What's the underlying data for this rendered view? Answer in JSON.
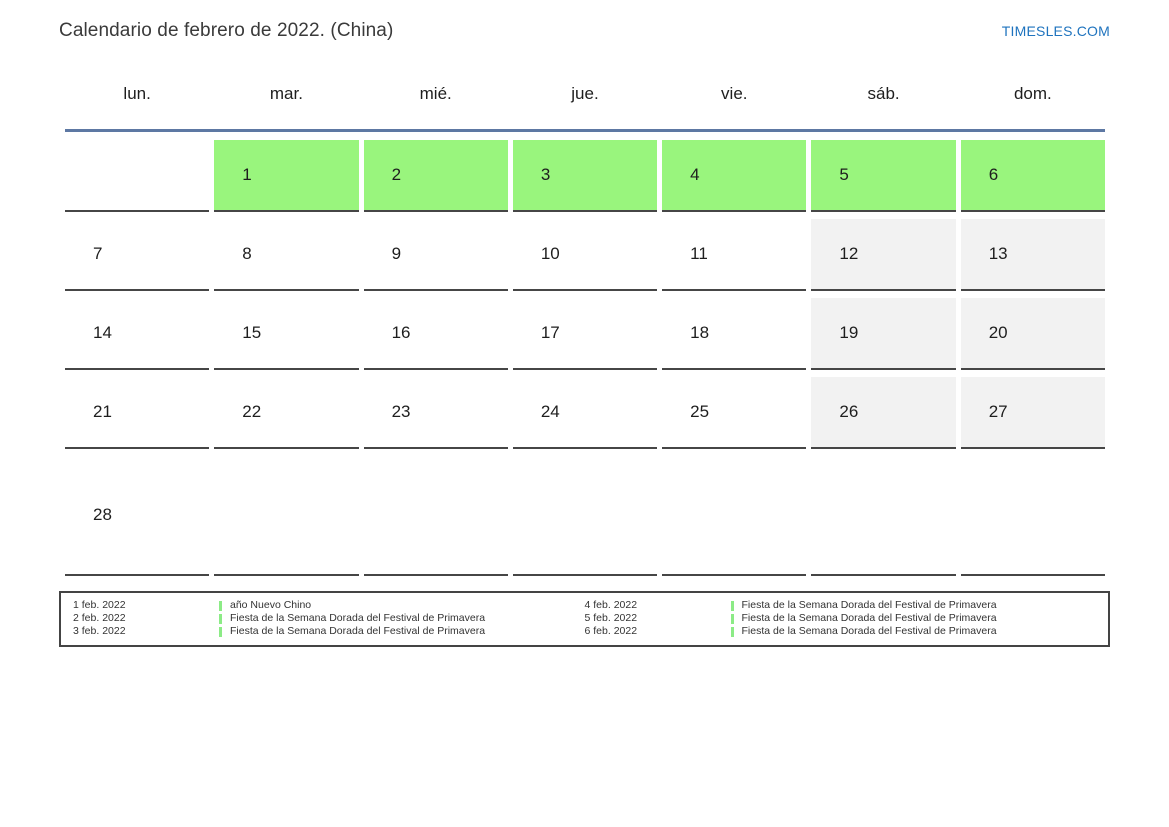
{
  "page": {
    "title": "Calendario de febrero de 2022. (China)",
    "brand": "TIMESLES.COM"
  },
  "calendar": {
    "weekdays": [
      "lun.",
      "mar.",
      "mié.",
      "jue.",
      "vie.",
      "sáb.",
      "dom."
    ],
    "weeks": [
      [
        {
          "day": "",
          "type": "empty"
        },
        {
          "day": "1",
          "type": "holiday"
        },
        {
          "day": "2",
          "type": "holiday"
        },
        {
          "day": "3",
          "type": "holiday"
        },
        {
          "day": "4",
          "type": "holiday"
        },
        {
          "day": "5",
          "type": "holiday"
        },
        {
          "day": "6",
          "type": "holiday"
        }
      ],
      [
        {
          "day": "7",
          "type": "normal"
        },
        {
          "day": "8",
          "type": "normal"
        },
        {
          "day": "9",
          "type": "normal"
        },
        {
          "day": "10",
          "type": "normal"
        },
        {
          "day": "11",
          "type": "normal"
        },
        {
          "day": "12",
          "type": "weekend"
        },
        {
          "day": "13",
          "type": "weekend"
        }
      ],
      [
        {
          "day": "14",
          "type": "normal"
        },
        {
          "day": "15",
          "type": "normal"
        },
        {
          "day": "16",
          "type": "normal"
        },
        {
          "day": "17",
          "type": "normal"
        },
        {
          "day": "18",
          "type": "normal"
        },
        {
          "day": "19",
          "type": "weekend"
        },
        {
          "day": "20",
          "type": "weekend"
        }
      ],
      [
        {
          "day": "21",
          "type": "normal"
        },
        {
          "day": "22",
          "type": "normal"
        },
        {
          "day": "23",
          "type": "normal"
        },
        {
          "day": "24",
          "type": "normal"
        },
        {
          "day": "25",
          "type": "normal"
        },
        {
          "day": "26",
          "type": "weekend"
        },
        {
          "day": "27",
          "type": "weekend"
        }
      ],
      [
        {
          "day": "28",
          "type": "normal"
        },
        {
          "day": "",
          "type": "empty"
        },
        {
          "day": "",
          "type": "empty"
        },
        {
          "day": "",
          "type": "empty"
        },
        {
          "day": "",
          "type": "empty"
        },
        {
          "day": "",
          "type": "empty"
        },
        {
          "day": "",
          "type": "empty"
        }
      ]
    ]
  },
  "legend": {
    "columns": [
      {
        "items": [
          {
            "date": "1 feb. 2022",
            "name": "año Nuevo Chino"
          },
          {
            "date": "2 feb. 2022",
            "name": "Fiesta de la Semana Dorada del Festival de Primavera"
          },
          {
            "date": "3 feb. 2022",
            "name": "Fiesta de la Semana Dorada del Festival de Primavera"
          }
        ]
      },
      {
        "items": [
          {
            "date": "4 feb. 2022",
            "name": "Fiesta de la Semana Dorada del Festival de Primavera"
          },
          {
            "date": "5 feb. 2022",
            "name": "Fiesta de la Semana Dorada del Festival de Primavera"
          },
          {
            "date": "6 feb. 2022",
            "name": "Fiesta de la Semana Dorada del Festival de Primavera"
          }
        ]
      }
    ]
  },
  "colors": {
    "holiday_green": "#99f57d",
    "weekend_gray": "#f2f2f2",
    "header_rule_blue": "#5d78a3",
    "cell_border": "#464646",
    "brand_blue": "#1e73be",
    "legend_marker_green": "#8ceb86",
    "legend_border": "#444444",
    "text_dark": "#222222"
  }
}
